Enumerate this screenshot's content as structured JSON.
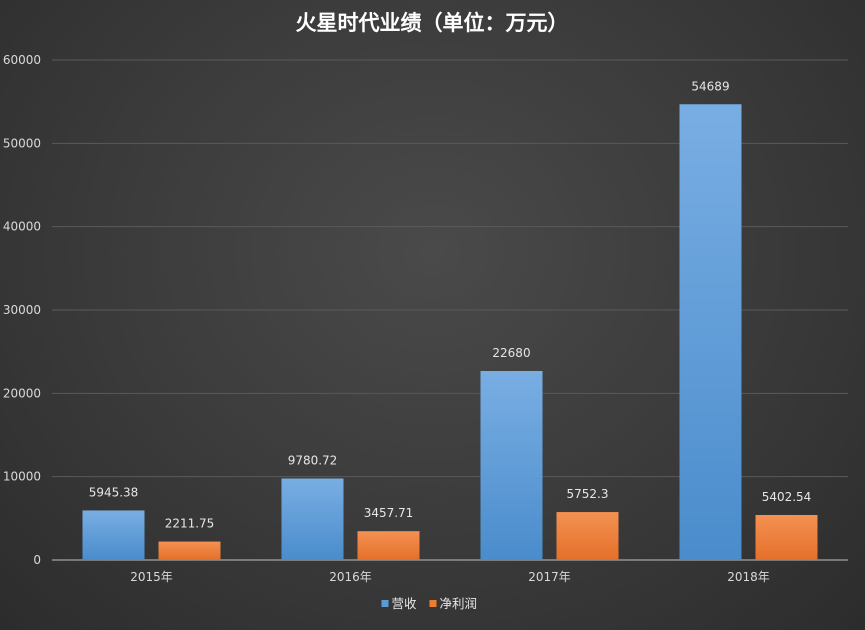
{
  "chart_data": {
    "type": "bar",
    "title": "火星时代业绩（单位：万元）",
    "categories": [
      "2015年",
      "2016年",
      "2017年",
      "2018年"
    ],
    "series": [
      {
        "name": "营收",
        "values": [
          5945.38,
          9780.72,
          22680,
          54689
        ],
        "labels": [
          "5945.38",
          "9780.72",
          "22680",
          "54689"
        ],
        "color": "#5b9bd5"
      },
      {
        "name": "净利润",
        "values": [
          2211.75,
          3457.71,
          5752.3,
          5402.54
        ],
        "labels": [
          "2211.75",
          "3457.71",
          "5752.3",
          "5402.54"
        ],
        "color": "#ed7d31"
      }
    ],
    "ylim": [
      0,
      60000
    ],
    "yticks": [
      0,
      10000,
      20000,
      30000,
      40000,
      50000,
      60000
    ],
    "grid": true,
    "legend": "bottom",
    "xlabel": "",
    "ylabel": ""
  }
}
